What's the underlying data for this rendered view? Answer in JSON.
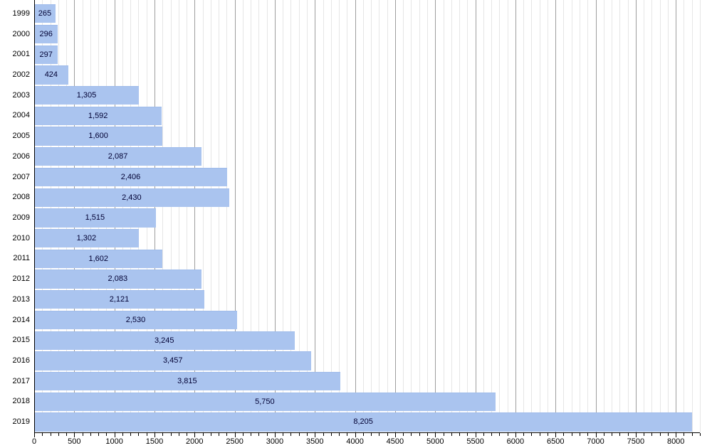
{
  "chart_data": {
    "type": "bar",
    "orientation": "horizontal",
    "title": "",
    "xlabel": "",
    "ylabel": "",
    "categories": [
      "1999",
      "2000",
      "2001",
      "2002",
      "2003",
      "2004",
      "2005",
      "2006",
      "2007",
      "2008",
      "2009",
      "2010",
      "2011",
      "2012",
      "2013",
      "2014",
      "2015",
      "2016",
      "2017",
      "2018",
      "2019"
    ],
    "values": [
      265,
      296,
      297,
      424,
      1305,
      1592,
      1600,
      2087,
      2406,
      2430,
      1515,
      1302,
      1602,
      2083,
      2121,
      2530,
      3245,
      3457,
      3815,
      5750,
      8205
    ],
    "value_labels": [
      "265",
      "296",
      "297",
      "424",
      "1,305",
      "1,592",
      "1,600",
      "2,087",
      "2,406",
      "2,430",
      "1,515",
      "1,302",
      "1,602",
      "2,083",
      "2,121",
      "2,530",
      "3,245",
      "3,457",
      "3,815",
      "5,750",
      "8,205"
    ],
    "xlim": [
      0,
      8300
    ],
    "x_major_tick_step": 500,
    "x_minor_tick_step": 100,
    "x_tick_labels": [
      "0",
      "500",
      "1000",
      "1500",
      "2000",
      "2500",
      "3000",
      "3500",
      "4000",
      "4500",
      "5000",
      "5500",
      "6000",
      "6500",
      "7000",
      "7500",
      "8000"
    ],
    "grid": true,
    "legend": "none",
    "colors": {
      "background": "#ffffff",
      "bar_fill": "#aac4ef",
      "bar_border": "#9fbbea",
      "value_label": "#000033",
      "category_label": "#000000",
      "tick_label": "#000000",
      "axis_line": "#000000",
      "major_gridline": "#9e9e9e",
      "minor_gridline": "#e6e6e6"
    }
  }
}
